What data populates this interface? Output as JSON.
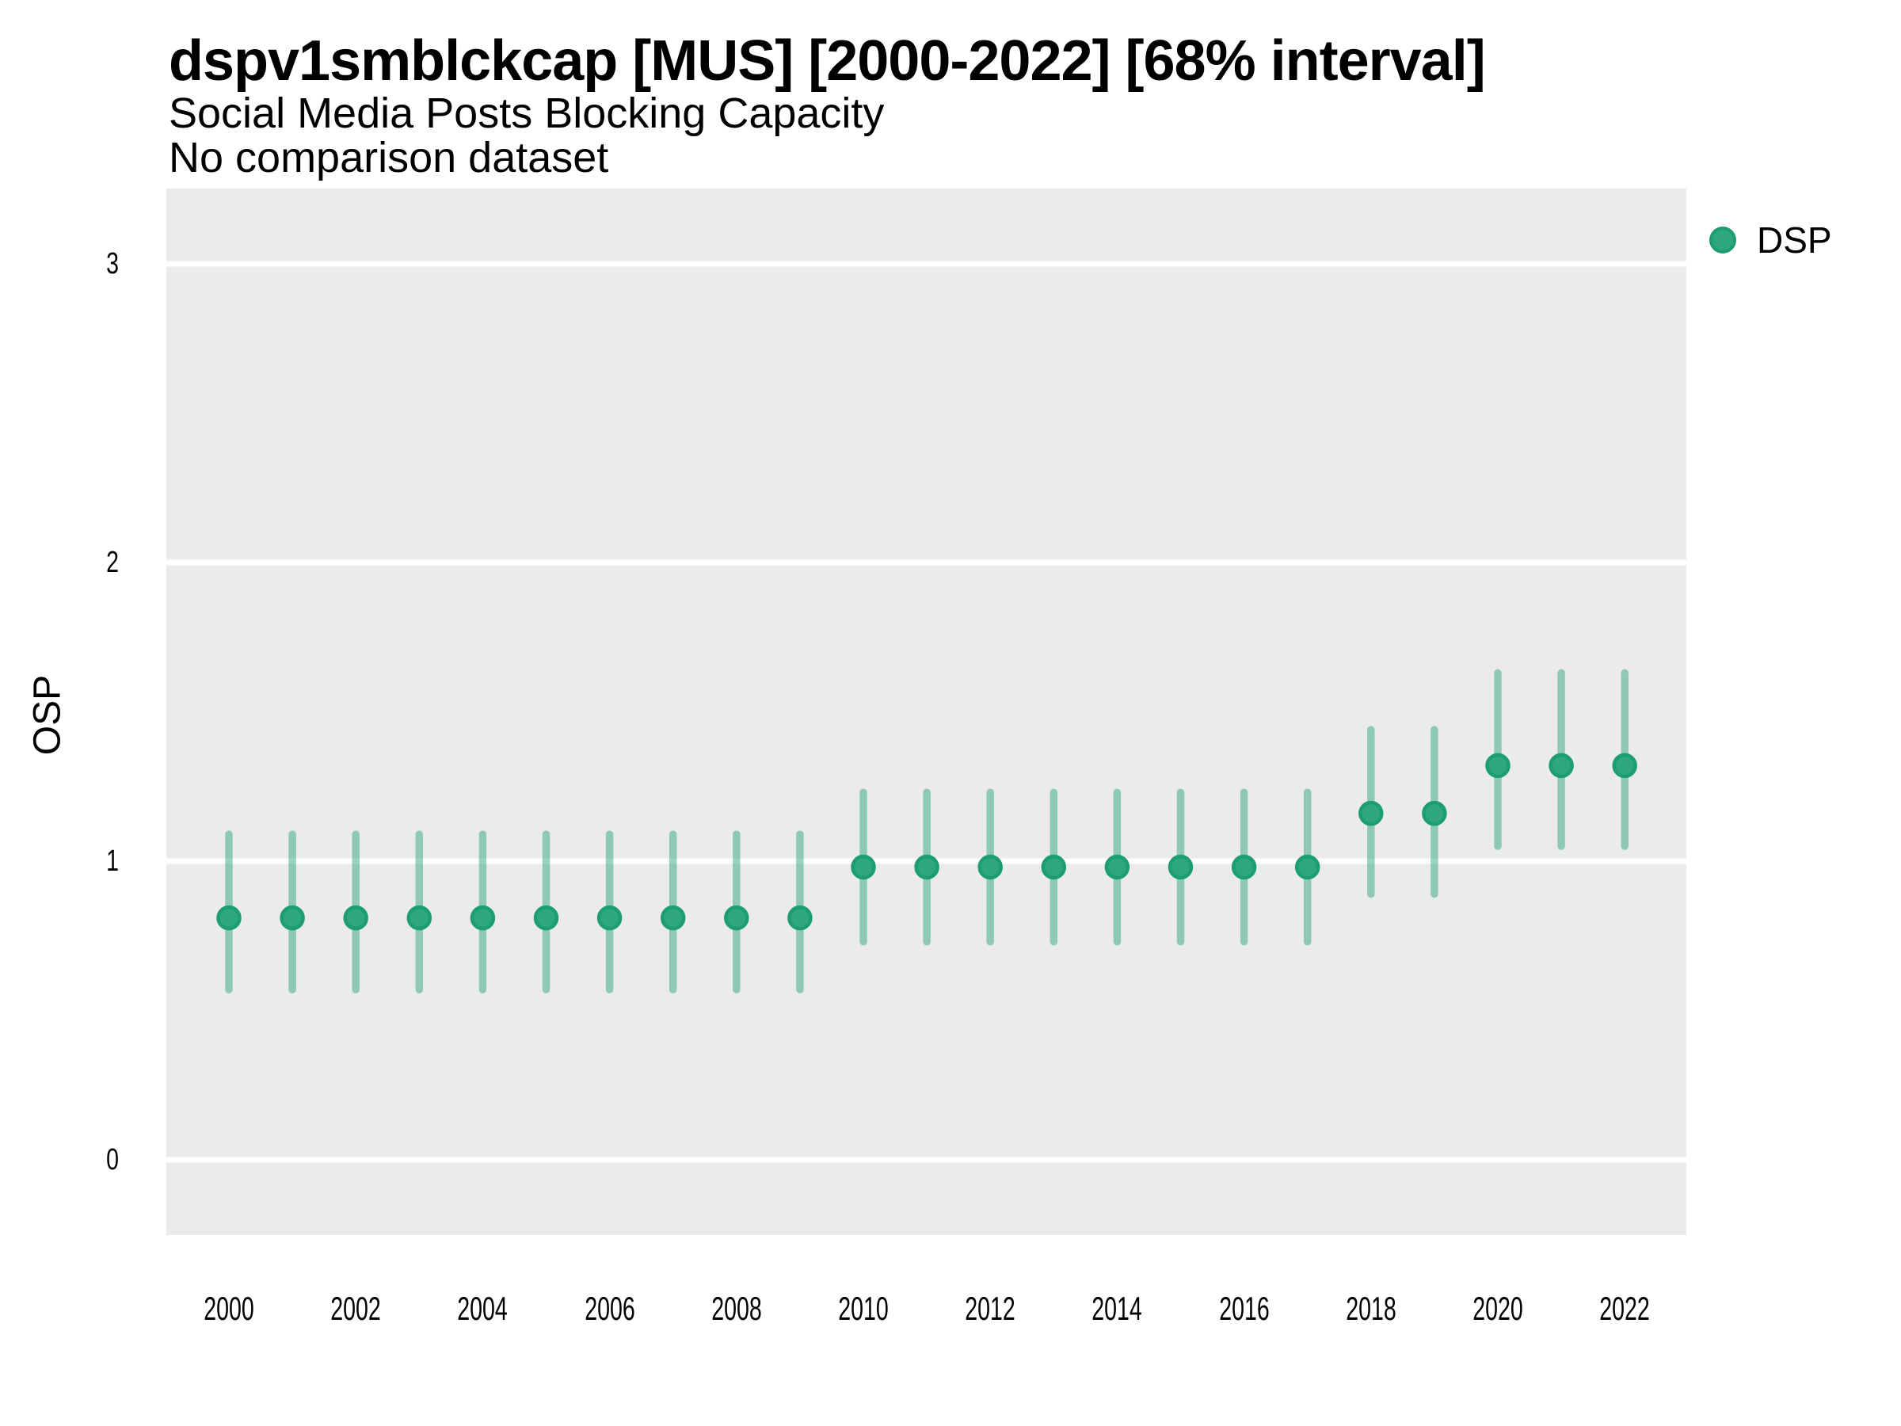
{
  "title": "dspv1smblckcap [MUS] [2000-2022] [68% interval]",
  "subtitle": "Social Media Posts Blocking Capacity",
  "comparison_note": "No comparison dataset",
  "legend": {
    "series_label": "DSP"
  },
  "colors": {
    "panel_background": "#EBEBEB",
    "gridline": "#FFFFFF",
    "point_fill": "#2EA780",
    "point_stroke": "#1C9E71",
    "interval_line": "rgba(47,168,130,0.5)",
    "text": "#000000"
  },
  "chart_data": {
    "type": "scatter",
    "subtype": "pointrange",
    "title": "dspv1smblckcap [MUS] [2000-2022] [68% interval]",
    "subtitle": "Social Media Posts Blocking Capacity",
    "note": "No comparison dataset",
    "xlabel": "",
    "ylabel": "OSP",
    "interval": "68%",
    "legend_position": "right-top",
    "grid": "horizontal-major-white-on-gray",
    "ylim": [
      -0.25,
      3.25
    ],
    "y_ticks": [
      3,
      2,
      1,
      0
    ],
    "x_ticks": [
      2000,
      2002,
      2004,
      2006,
      2008,
      2010,
      2012,
      2014,
      2016,
      2018,
      2020,
      2022
    ],
    "series": [
      {
        "name": "DSP",
        "points": [
          {
            "year": 2000,
            "value": 0.81,
            "lo": 0.57,
            "hi": 1.09
          },
          {
            "year": 2001,
            "value": 0.81,
            "lo": 0.57,
            "hi": 1.09
          },
          {
            "year": 2002,
            "value": 0.81,
            "lo": 0.57,
            "hi": 1.09
          },
          {
            "year": 2003,
            "value": 0.81,
            "lo": 0.57,
            "hi": 1.09
          },
          {
            "year": 2004,
            "value": 0.81,
            "lo": 0.57,
            "hi": 1.09
          },
          {
            "year": 2005,
            "value": 0.81,
            "lo": 0.57,
            "hi": 1.09
          },
          {
            "year": 2006,
            "value": 0.81,
            "lo": 0.57,
            "hi": 1.09
          },
          {
            "year": 2007,
            "value": 0.81,
            "lo": 0.57,
            "hi": 1.09
          },
          {
            "year": 2008,
            "value": 0.81,
            "lo": 0.57,
            "hi": 1.09
          },
          {
            "year": 2009,
            "value": 0.81,
            "lo": 0.57,
            "hi": 1.09
          },
          {
            "year": 2010,
            "value": 0.98,
            "lo": 0.73,
            "hi": 1.23
          },
          {
            "year": 2011,
            "value": 0.98,
            "lo": 0.73,
            "hi": 1.23
          },
          {
            "year": 2012,
            "value": 0.98,
            "lo": 0.73,
            "hi": 1.23
          },
          {
            "year": 2013,
            "value": 0.98,
            "lo": 0.73,
            "hi": 1.23
          },
          {
            "year": 2014,
            "value": 0.98,
            "lo": 0.73,
            "hi": 1.23
          },
          {
            "year": 2015,
            "value": 0.98,
            "lo": 0.73,
            "hi": 1.23
          },
          {
            "year": 2016,
            "value": 0.98,
            "lo": 0.73,
            "hi": 1.23
          },
          {
            "year": 2017,
            "value": 0.98,
            "lo": 0.73,
            "hi": 1.23
          },
          {
            "year": 2018,
            "value": 1.16,
            "lo": 0.89,
            "hi": 1.44
          },
          {
            "year": 2019,
            "value": 1.16,
            "lo": 0.89,
            "hi": 1.44
          },
          {
            "year": 2020,
            "value": 1.32,
            "lo": 1.05,
            "hi": 1.63
          },
          {
            "year": 2021,
            "value": 1.32,
            "lo": 1.05,
            "hi": 1.63
          },
          {
            "year": 2022,
            "value": 1.32,
            "lo": 1.05,
            "hi": 1.63
          }
        ]
      }
    ]
  }
}
